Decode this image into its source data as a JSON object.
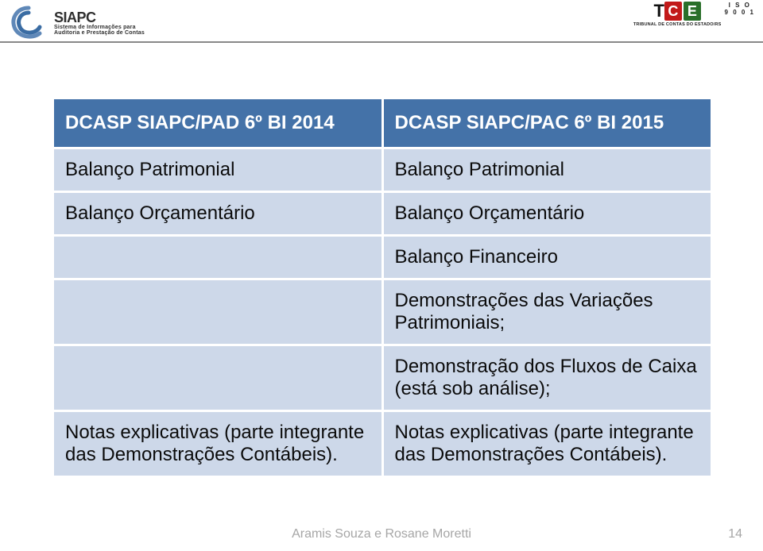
{
  "colors": {
    "header_bg": "#4472a8",
    "cell_bg": "#cdd8e9",
    "cell_text": "#0b0b0b",
    "footer": "#a6a6a6",
    "siapc_title": "#2f2f2f",
    "siapc_sub": "#2f2f2f",
    "swirl_primary": "#3a6ca3",
    "swirl_outer": "#5f88b8",
    "tce_t": "#111111",
    "tce_c_bg": "#c21a1a",
    "tce_e_bg": "#2a6f2a"
  },
  "header": {
    "siapc": {
      "title": "SIAPC",
      "sub1": "Sistema de Informações para",
      "sub2": "Auditoria e Prestação de Contas"
    },
    "tce": {
      "t": "T",
      "c": "C",
      "e": "E",
      "sub": "TRIBUNAL DE CONTAS DO ESTADO/RS",
      "iso_top": "I S O",
      "iso_bottom": "9 0 0 1"
    }
  },
  "table": {
    "headers": [
      "DCASP SIAPC/PAD 6º BI 2014",
      "DCASP SIAPC/PAC 6º BI 2015"
    ],
    "col_widths": [
      "50%",
      "50%"
    ],
    "header_fontsize": 24,
    "cell_fontsize": 24,
    "rows": [
      [
        "Balanço Patrimonial",
        "Balanço Patrimonial"
      ],
      [
        "Balanço Orçamentário",
        "Balanço Orçamentário"
      ],
      [
        "",
        "Balanço Financeiro"
      ],
      [
        "",
        "Demonstrações das Variações Patrimoniais;"
      ],
      [
        "",
        "Demonstração dos Fluxos de Caixa (está sob análise);"
      ],
      [
        "Notas explicativas (parte integrante das Demonstrações Contábeis).",
        "Notas explicativas (parte integrante das Demonstrações Contábeis)."
      ]
    ]
  },
  "footer": {
    "text": "Aramis Souza e Rosane Moretti",
    "page": "14"
  }
}
